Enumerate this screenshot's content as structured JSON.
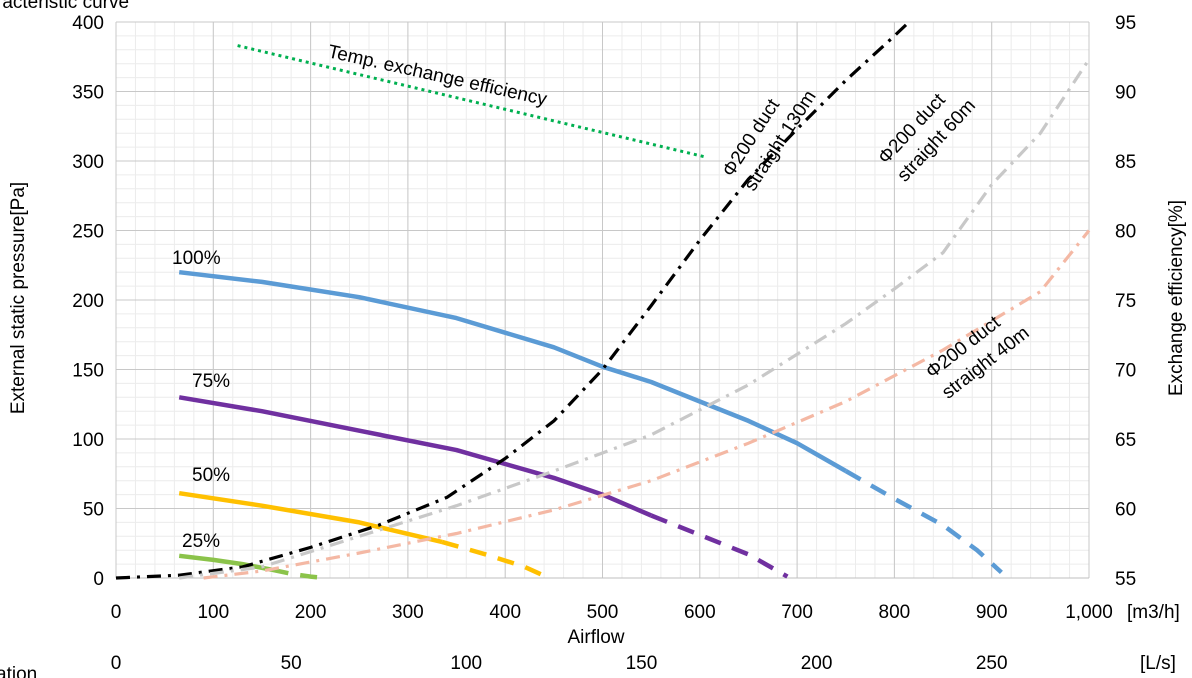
{
  "title": "racteristic curve",
  "footnote": "ation",
  "chart_data": {
    "type": "line",
    "title": "racteristic curve",
    "xlabel": "Airflow",
    "x_unit": "[m3/h]",
    "x2_unit": "[L/s]",
    "ylabel": "External static pressure[Pa]",
    "y2label": "Exchange efficiency[%]",
    "xlim": [
      0,
      1000
    ],
    "ylim": [
      0,
      400
    ],
    "y2lim": [
      55,
      95
    ],
    "grid": true,
    "x_ticks": [
      "0",
      "100",
      "200",
      "300",
      "400",
      "500",
      "600",
      "700",
      "800",
      "900",
      "1,000"
    ],
    "x2_ticks": [
      "0",
      "50",
      "100",
      "150",
      "200",
      "250"
    ],
    "x2_tick_values": [
      0,
      50,
      100,
      150,
      200,
      250
    ],
    "y_ticks": [
      "0",
      "50",
      "100",
      "150",
      "200",
      "250",
      "300",
      "350",
      "400"
    ],
    "y2_ticks": [
      "55",
      "60",
      "65",
      "70",
      "75",
      "80",
      "85",
      "90",
      "95"
    ],
    "series": [
      {
        "name": "100%",
        "kind": "fan",
        "color": "#5B9BD5",
        "solid": [
          [
            65,
            220
          ],
          [
            150,
            213
          ],
          [
            250,
            202
          ],
          [
            350,
            187
          ],
          [
            450,
            166
          ],
          [
            500,
            152
          ],
          [
            550,
            141
          ],
          [
            600,
            127
          ],
          [
            650,
            113
          ],
          [
            700,
            97
          ],
          [
            750,
            77
          ]
        ],
        "dashed": [
          [
            750,
            77
          ],
          [
            800,
            57
          ],
          [
            850,
            38
          ],
          [
            885,
            20
          ],
          [
            910,
            4
          ]
        ]
      },
      {
        "name": "75%",
        "kind": "fan",
        "color": "#7030A0",
        "solid": [
          [
            65,
            130
          ],
          [
            150,
            120
          ],
          [
            250,
            106
          ],
          [
            350,
            92
          ],
          [
            400,
            82
          ],
          [
            450,
            72
          ],
          [
            500,
            60
          ],
          [
            550,
            45
          ]
        ],
        "dashed": [
          [
            550,
            45
          ],
          [
            600,
            31
          ],
          [
            650,
            17
          ],
          [
            690,
            1
          ]
        ]
      },
      {
        "name": "50%",
        "kind": "fan",
        "color": "#FFC000",
        "solid": [
          [
            65,
            61
          ],
          [
            150,
            52
          ],
          [
            250,
            40
          ],
          [
            335,
            26
          ]
        ],
        "dashed": [
          [
            335,
            26
          ],
          [
            380,
            17
          ],
          [
            420,
            8
          ],
          [
            445,
            0
          ]
        ]
      },
      {
        "name": "25%",
        "kind": "fan",
        "color": "#8BC34A",
        "solid": [
          [
            65,
            16
          ],
          [
            100,
            13
          ],
          [
            130,
            10
          ],
          [
            160,
            6
          ]
        ],
        "dashed": [
          [
            160,
            6
          ],
          [
            180,
            3
          ],
          [
            200,
            1
          ],
          [
            215,
            0
          ]
        ]
      },
      {
        "name": "Φ200 duct straight 130m",
        "kind": "duct",
        "color": "#000000",
        "points": [
          [
            0,
            0
          ],
          [
            65,
            2
          ],
          [
            130,
            8
          ],
          [
            200,
            22
          ],
          [
            270,
            38
          ],
          [
            340,
            58
          ],
          [
            400,
            86
          ],
          [
            450,
            113
          ],
          [
            500,
            150
          ],
          [
            550,
            196
          ],
          [
            600,
            243
          ],
          [
            650,
            287
          ],
          [
            700,
            323
          ],
          [
            750,
            358
          ],
          [
            800,
            390
          ],
          [
            815,
            400
          ]
        ]
      },
      {
        "name": "Φ200 duct straight 60m",
        "kind": "duct",
        "color": "#C8C8C8",
        "points": [
          [
            65,
            0
          ],
          [
            150,
            8
          ],
          [
            250,
            30
          ],
          [
            350,
            52
          ],
          [
            450,
            77
          ],
          [
            550,
            103
          ],
          [
            650,
            139
          ],
          [
            750,
            183
          ],
          [
            800,
            208
          ],
          [
            850,
            234
          ],
          [
            900,
            283
          ],
          [
            950,
            320
          ],
          [
            1000,
            373
          ]
        ]
      },
      {
        "name": "Φ200 duct straight 40m",
        "kind": "duct",
        "color": "#F4B8A4",
        "points": [
          [
            90,
            0
          ],
          [
            150,
            5
          ],
          [
            250,
            18
          ],
          [
            350,
            32
          ],
          [
            450,
            49
          ],
          [
            550,
            70
          ],
          [
            650,
            97
          ],
          [
            750,
            127
          ],
          [
            850,
            164
          ],
          [
            950,
            206
          ],
          [
            1000,
            250
          ]
        ]
      },
      {
        "name": "Temp. exchange efficiency",
        "kind": "efficiency",
        "axis": "y2",
        "color": "#00B050",
        "points": [
          [
            125,
            93.3
          ],
          [
            605,
            85.3
          ]
        ]
      }
    ],
    "labels": {
      "fan": [
        "100%",
        "75%",
        "50%",
        "25%"
      ],
      "eff": "Temp. exchange efficiency",
      "d130": [
        "Φ200 duct",
        "straight 130m"
      ],
      "d60": [
        "Φ200 duct",
        "straight 60m"
      ],
      "d40": [
        "Φ200 duct",
        "straight 40m"
      ]
    }
  }
}
